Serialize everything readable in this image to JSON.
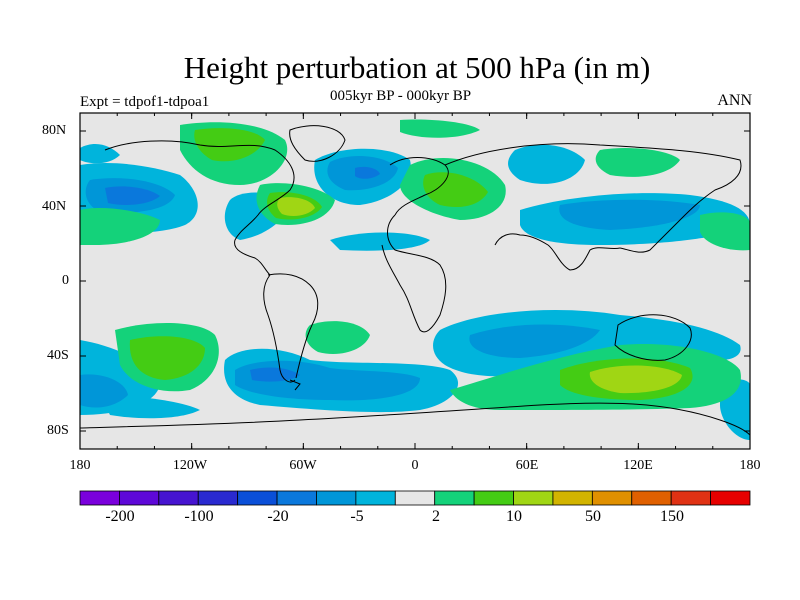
{
  "title": "Height perturbation at 500 hPa (in m)",
  "subtitle": "005kyr BP - 000kyr BP",
  "left_label": "Expt = tdpof1-tdpoa1",
  "right_label": "ANN",
  "lat_labels": [
    "80N",
    "40N",
    "0",
    "40S",
    "80S"
  ],
  "lon_labels": [
    "180",
    "120W",
    "60W",
    "0",
    "60E",
    "120E",
    "180"
  ],
  "colorbar": {
    "colors": [
      "#7a00dc",
      "#5e08d8",
      "#4614d0",
      "#2a2ad0",
      "#0a4fd8",
      "#0a78dc",
      "#0096d8",
      "#00b4dc",
      "#e6e6e6",
      "#14d27a",
      "#44cc14",
      "#a0d614",
      "#d2b400",
      "#e09000",
      "#e06000",
      "#e03214",
      "#e60000"
    ],
    "labels": [
      "-200",
      "-100",
      "-20",
      "-5",
      "2",
      "10",
      "50",
      "150"
    ]
  },
  "map": {
    "background": "#e6e6e6",
    "palette": {
      "lightblue": "#00b4dc",
      "midblue": "#0096d8",
      "deepblue": "#0a78dc",
      "green1": "#14d27a",
      "green2": "#44cc14",
      "yellowgreen": "#a0d614",
      "coast": "#000000"
    }
  }
}
